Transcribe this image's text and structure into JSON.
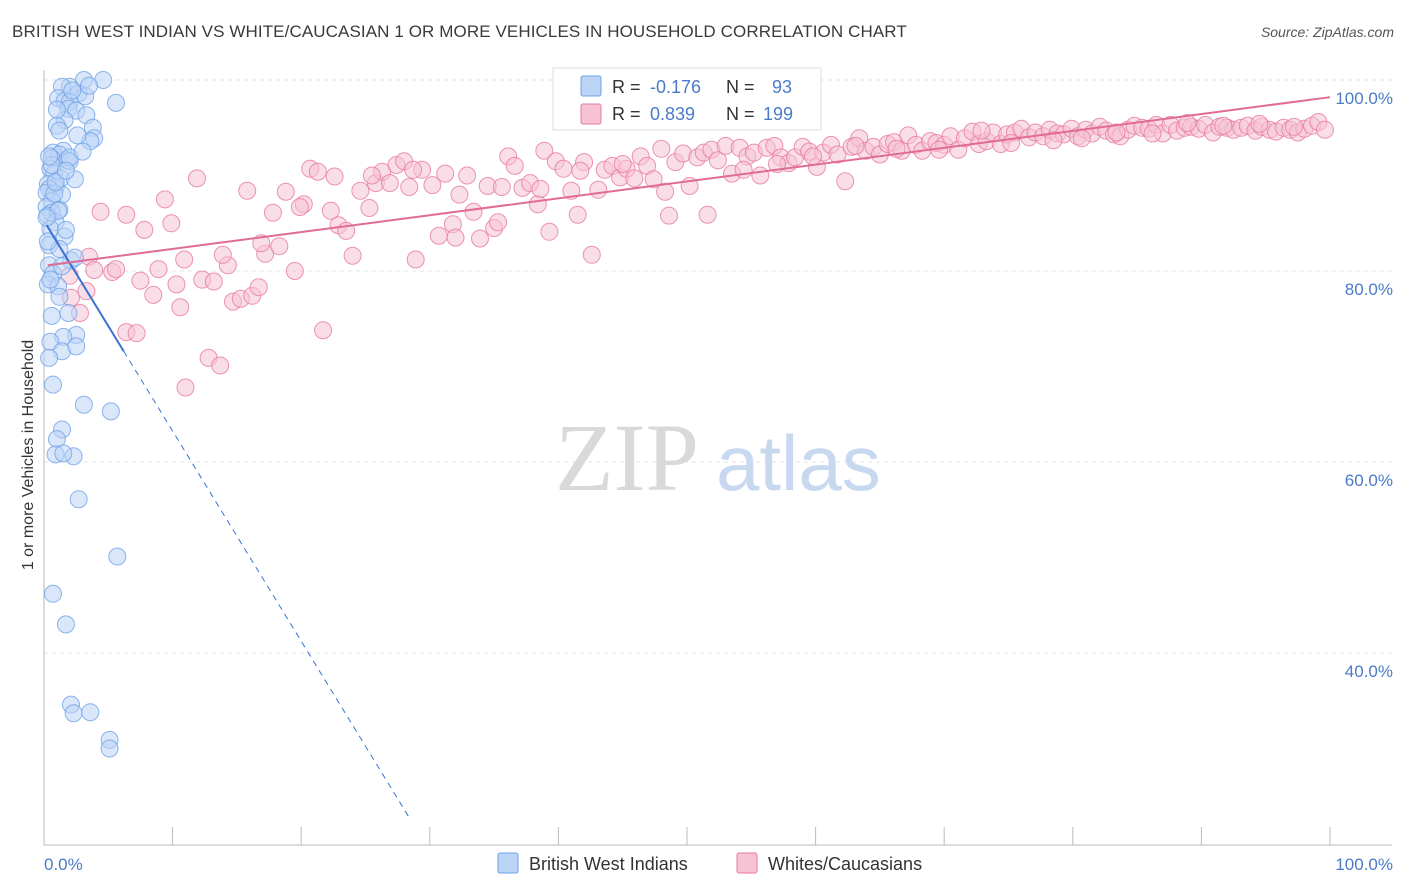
{
  "chart_data": {
    "type": "scatter",
    "title": "BRITISH WEST INDIAN VS WHITE/CAUCASIAN 1 OR MORE VEHICLES IN HOUSEHOLD CORRELATION CHART",
    "source": "Source: ZipAtlas.com",
    "xlabel": "",
    "ylabel": "1 or more Vehicles in Household",
    "xlim": [
      0,
      100
    ],
    "ylim": [
      20,
      102
    ],
    "x_tick_labels": [
      {
        "value": 0,
        "label": "0.0%"
      },
      {
        "value": 100,
        "label": "100.0%"
      }
    ],
    "y_tick_labels": [
      {
        "value": 100,
        "label": "100.0%"
      },
      {
        "value": 80,
        "label": "80.0%"
      },
      {
        "value": 60,
        "label": "60.0%"
      },
      {
        "value": 40,
        "label": "40.0%"
      }
    ],
    "watermark": {
      "zip": "ZIP",
      "atlas": "atlas"
    },
    "legend": {
      "r_label": "R =",
      "n_label": "N =",
      "entries": [
        {
          "r": "-0.176",
          "n": "93"
        },
        {
          "r": "0.839",
          "n": "199"
        }
      ]
    },
    "series": [
      {
        "name": "British West Indians",
        "color": "#6fa3e8",
        "fill": "#bcd4f5",
        "trend": {
          "x1": 0.2,
          "y1": 84.8,
          "x2": 6.2,
          "y2": 71.6,
          "dash_to_x": 28.5
        },
        "points": [
          [
            3.1,
            100
          ],
          [
            4.6,
            100
          ],
          [
            2.0,
            99.3
          ],
          [
            1.4,
            99.3
          ],
          [
            2.7,
            98.6
          ],
          [
            3.2,
            98.3
          ],
          [
            1.1,
            98.1
          ],
          [
            1.6,
            97.8
          ],
          [
            2.0,
            97.7
          ],
          [
            5.6,
            97.6
          ],
          [
            1.9,
            97.0
          ],
          [
            2.5,
            96.8
          ],
          [
            3.3,
            96.3
          ],
          [
            1.6,
            95.8
          ],
          [
            1.0,
            95.2
          ],
          [
            3.8,
            95.0
          ],
          [
            1.2,
            94.7
          ],
          [
            3.9,
            93.9
          ],
          [
            3.6,
            93.6
          ],
          [
            1.5,
            92.6
          ],
          [
            0.7,
            92.4
          ],
          [
            1.2,
            92.2
          ],
          [
            0.6,
            91.8
          ],
          [
            1.8,
            91.6
          ],
          [
            2.0,
            91.5
          ],
          [
            0.5,
            90.7
          ],
          [
            0.8,
            90.2
          ],
          [
            1.3,
            89.7
          ],
          [
            2.4,
            89.6
          ],
          [
            0.3,
            89.1
          ],
          [
            0.9,
            88.8
          ],
          [
            0.4,
            88.6
          ],
          [
            0.2,
            88.2
          ],
          [
            1.4,
            88.0
          ],
          [
            0.6,
            87.3
          ],
          [
            0.2,
            86.7
          ],
          [
            1.2,
            86.4
          ],
          [
            0.6,
            86.1
          ],
          [
            0.3,
            85.8
          ],
          [
            0.9,
            85.1
          ],
          [
            0.5,
            84.4
          ],
          [
            1.6,
            83.6
          ],
          [
            0.4,
            82.7
          ],
          [
            1.2,
            82.3
          ],
          [
            2.1,
            81.1
          ],
          [
            0.4,
            80.6
          ],
          [
            0.7,
            79.7
          ],
          [
            0.3,
            78.6
          ],
          [
            1.1,
            78.4
          ],
          [
            1.9,
            75.6
          ],
          [
            0.6,
            75.3
          ],
          [
            2.5,
            73.3
          ],
          [
            1.5,
            73.1
          ],
          [
            0.5,
            72.6
          ],
          [
            1.4,
            71.6
          ],
          [
            2.5,
            72.1
          ],
          [
            0.4,
            70.9
          ],
          [
            0.7,
            68.1
          ],
          [
            3.1,
            66.0
          ],
          [
            5.2,
            65.3
          ],
          [
            1.4,
            63.4
          ],
          [
            1.0,
            62.4
          ],
          [
            0.9,
            60.8
          ],
          [
            2.3,
            60.6
          ],
          [
            2.7,
            56.1
          ],
          [
            5.7,
            50.1
          ],
          [
            0.7,
            46.2
          ],
          [
            1.7,
            43.0
          ],
          [
            2.1,
            34.6
          ],
          [
            2.3,
            33.7
          ],
          [
            3.6,
            33.8
          ],
          [
            5.1,
            30.9
          ],
          [
            5.1,
            30.0
          ],
          [
            1.5,
            60.9
          ],
          [
            2.2,
            98.9
          ],
          [
            0.8,
            88.1
          ],
          [
            1.1,
            86.3
          ],
          [
            1.7,
            84.3
          ],
          [
            0.6,
            91.1
          ],
          [
            2.6,
            94.2
          ],
          [
            1.0,
            96.9
          ],
          [
            3.5,
            99.4
          ],
          [
            0.2,
            85.6
          ],
          [
            1.4,
            80.5
          ],
          [
            0.9,
            89.3
          ],
          [
            0.4,
            92.0
          ],
          [
            2.0,
            91.9
          ],
          [
            1.2,
            77.3
          ],
          [
            2.4,
            81.4
          ],
          [
            0.5,
            79.1
          ],
          [
            1.7,
            90.5
          ],
          [
            3.0,
            92.5
          ],
          [
            0.3,
            83.1
          ]
        ]
      },
      {
        "name": "Whites/Caucasians",
        "color": "#e879a0",
        "fill": "#f6c2d4",
        "trend": {
          "x1": 0.3,
          "y1": 80.6,
          "x2": 100,
          "y2": 98.2
        },
        "points": [
          [
            2.0,
            79.5
          ],
          [
            2.1,
            77.2
          ],
          [
            2.8,
            75.6
          ],
          [
            3.3,
            77.9
          ],
          [
            3.5,
            81.5
          ],
          [
            3.9,
            80.1
          ],
          [
            4.4,
            86.2
          ],
          [
            5.3,
            79.9
          ],
          [
            5.6,
            80.2
          ],
          [
            6.4,
            85.9
          ],
          [
            6.4,
            73.6
          ],
          [
            7.2,
            73.5
          ],
          [
            7.5,
            79.0
          ],
          [
            7.8,
            84.3
          ],
          [
            8.5,
            77.5
          ],
          [
            8.9,
            80.2
          ],
          [
            9.4,
            87.5
          ],
          [
            9.9,
            85.0
          ],
          [
            10.3,
            78.6
          ],
          [
            10.6,
            76.2
          ],
          [
            11.0,
            67.8
          ],
          [
            11.9,
            89.7
          ],
          [
            12.3,
            79.1
          ],
          [
            12.8,
            70.9
          ],
          [
            13.2,
            78.9
          ],
          [
            13.7,
            70.1
          ],
          [
            14.3,
            80.6
          ],
          [
            14.7,
            76.8
          ],
          [
            15.3,
            77.1
          ],
          [
            15.8,
            88.4
          ],
          [
            16.2,
            77.4
          ],
          [
            16.7,
            78.3
          ],
          [
            17.2,
            81.8
          ],
          [
            17.8,
            86.1
          ],
          [
            18.3,
            82.6
          ],
          [
            18.8,
            88.3
          ],
          [
            19.5,
            80.0
          ],
          [
            20.2,
            87.0
          ],
          [
            20.7,
            90.7
          ],
          [
            21.3,
            90.4
          ],
          [
            21.7,
            73.8
          ],
          [
            22.3,
            86.3
          ],
          [
            22.9,
            84.8
          ],
          [
            23.5,
            84.2
          ],
          [
            24.0,
            81.6
          ],
          [
            24.6,
            88.4
          ],
          [
            25.3,
            86.6
          ],
          [
            25.8,
            89.2
          ],
          [
            26.3,
            90.4
          ],
          [
            26.9,
            89.2
          ],
          [
            27.4,
            91.1
          ],
          [
            28.0,
            91.5
          ],
          [
            28.4,
            88.8
          ],
          [
            28.9,
            81.2
          ],
          [
            29.4,
            90.6
          ],
          [
            30.2,
            89.0
          ],
          [
            30.7,
            83.7
          ],
          [
            31.2,
            90.2
          ],
          [
            31.8,
            84.9
          ],
          [
            32.3,
            88.0
          ],
          [
            32.9,
            90.0
          ],
          [
            33.4,
            86.2
          ],
          [
            33.9,
            83.4
          ],
          [
            34.5,
            88.9
          ],
          [
            35.0,
            84.5
          ],
          [
            35.6,
            88.8
          ],
          [
            36.1,
            92.0
          ],
          [
            36.6,
            91.0
          ],
          [
            37.2,
            88.7
          ],
          [
            37.8,
            89.2
          ],
          [
            38.4,
            87.0
          ],
          [
            38.9,
            92.6
          ],
          [
            39.3,
            84.1
          ],
          [
            39.8,
            91.5
          ],
          [
            40.4,
            90.7
          ],
          [
            41.0,
            88.4
          ],
          [
            41.5,
            85.9
          ],
          [
            42.0,
            91.4
          ],
          [
            42.6,
            81.7
          ],
          [
            43.1,
            88.5
          ],
          [
            43.6,
            90.6
          ],
          [
            44.2,
            91.0
          ],
          [
            44.8,
            89.8
          ],
          [
            45.3,
            90.7
          ],
          [
            45.9,
            89.7
          ],
          [
            46.4,
            92.0
          ],
          [
            46.9,
            91.0
          ],
          [
            47.4,
            89.6
          ],
          [
            48.0,
            92.8
          ],
          [
            48.6,
            85.8
          ],
          [
            49.1,
            91.4
          ],
          [
            49.7,
            92.3
          ],
          [
            50.2,
            88.9
          ],
          [
            50.8,
            91.9
          ],
          [
            51.3,
            92.4
          ],
          [
            51.9,
            92.7
          ],
          [
            52.4,
            91.6
          ],
          [
            53.0,
            93.1
          ],
          [
            53.5,
            90.2
          ],
          [
            54.1,
            92.9
          ],
          [
            54.7,
            92.0
          ],
          [
            55.2,
            92.4
          ],
          [
            55.7,
            90.0
          ],
          [
            56.2,
            92.9
          ],
          [
            56.8,
            93.1
          ],
          [
            57.3,
            91.9
          ],
          [
            57.9,
            91.3
          ],
          [
            58.4,
            91.9
          ],
          [
            59.0,
            93.0
          ],
          [
            59.5,
            92.5
          ],
          [
            60.1,
            90.9
          ],
          [
            60.6,
            92.4
          ],
          [
            61.2,
            93.2
          ],
          [
            61.7,
            92.2
          ],
          [
            62.3,
            89.4
          ],
          [
            62.8,
            93.0
          ],
          [
            63.4,
            93.9
          ],
          [
            63.9,
            92.6
          ],
          [
            64.5,
            93.0
          ],
          [
            65.0,
            92.2
          ],
          [
            65.6,
            93.3
          ],
          [
            66.1,
            93.5
          ],
          [
            66.7,
            92.6
          ],
          [
            67.2,
            94.2
          ],
          [
            67.8,
            93.2
          ],
          [
            68.3,
            92.6
          ],
          [
            68.9,
            93.6
          ],
          [
            69.4,
            93.4
          ],
          [
            70.0,
            93.2
          ],
          [
            70.5,
            94.1
          ],
          [
            71.1,
            92.7
          ],
          [
            71.6,
            93.9
          ],
          [
            72.2,
            94.6
          ],
          [
            72.7,
            93.3
          ],
          [
            73.3,
            93.6
          ],
          [
            73.8,
            94.5
          ],
          [
            74.4,
            93.3
          ],
          [
            74.9,
            94.3
          ],
          [
            75.5,
            94.5
          ],
          [
            76.0,
            94.9
          ],
          [
            76.6,
            94.0
          ],
          [
            77.1,
            94.5
          ],
          [
            77.7,
            94.1
          ],
          [
            78.2,
            94.8
          ],
          [
            78.8,
            94.4
          ],
          [
            79.3,
            94.3
          ],
          [
            79.9,
            94.9
          ],
          [
            80.4,
            94.1
          ],
          [
            81.0,
            94.8
          ],
          [
            81.5,
            94.4
          ],
          [
            82.1,
            95.1
          ],
          [
            82.6,
            94.7
          ],
          [
            83.2,
            94.3
          ],
          [
            83.7,
            94.1
          ],
          [
            84.3,
            94.8
          ],
          [
            84.8,
            95.2
          ],
          [
            85.4,
            95.0
          ],
          [
            85.9,
            94.9
          ],
          [
            86.5,
            95.3
          ],
          [
            87.0,
            94.4
          ],
          [
            87.6,
            95.3
          ],
          [
            88.1,
            94.7
          ],
          [
            88.7,
            95.0
          ],
          [
            89.2,
            95.1
          ],
          [
            89.8,
            94.9
          ],
          [
            90.3,
            95.3
          ],
          [
            90.9,
            94.5
          ],
          [
            91.4,
            95.1
          ],
          [
            92.0,
            95.0
          ],
          [
            92.5,
            94.8
          ],
          [
            93.1,
            95.0
          ],
          [
            93.6,
            95.2
          ],
          [
            94.2,
            94.7
          ],
          [
            94.7,
            95.1
          ],
          [
            95.3,
            94.8
          ],
          [
            95.8,
            94.6
          ],
          [
            96.4,
            95.0
          ],
          [
            96.9,
            94.8
          ],
          [
            97.5,
            94.5
          ],
          [
            98.0,
            94.9
          ],
          [
            98.6,
            95.2
          ],
          [
            99.1,
            95.6
          ],
          [
            99.6,
            94.8
          ],
          [
            78.5,
            93.7
          ],
          [
            80.7,
            93.9
          ],
          [
            83.4,
            94.5
          ],
          [
            86.2,
            94.4
          ],
          [
            88.9,
            95.5
          ],
          [
            91.7,
            95.2
          ],
          [
            94.5,
            95.4
          ],
          [
            97.2,
            95.1
          ],
          [
            75.2,
            93.4
          ],
          [
            72.9,
            94.7
          ],
          [
            69.6,
            92.7
          ],
          [
            66.3,
            92.8
          ],
          [
            63.1,
            93.1
          ],
          [
            59.8,
            92.0
          ],
          [
            57.0,
            91.2
          ],
          [
            54.4,
            90.6
          ],
          [
            51.6,
            85.9
          ],
          [
            48.3,
            88.3
          ],
          [
            45.0,
            91.2
          ],
          [
            41.7,
            90.5
          ],
          [
            38.6,
            88.6
          ],
          [
            35.3,
            85.1
          ],
          [
            32.0,
            83.5
          ],
          [
            28.7,
            90.6
          ],
          [
            25.5,
            90.0
          ],
          [
            22.6,
            89.9
          ],
          [
            19.9,
            86.7
          ],
          [
            16.9,
            82.9
          ],
          [
            13.9,
            81.7
          ],
          [
            10.9,
            81.2
          ]
        ]
      }
    ]
  }
}
